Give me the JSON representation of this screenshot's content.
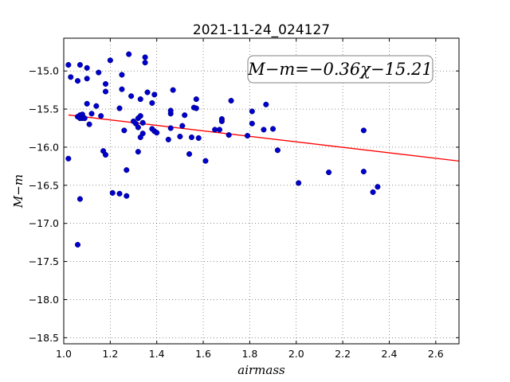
{
  "chart_data": {
    "type": "scatter",
    "title": "2021-11-24_024127",
    "xlabel": "airmass",
    "ylabel": "M−m",
    "xlim": [
      1.0,
      2.7
    ],
    "ylim": [
      -18.58,
      -14.57
    ],
    "x_ticks": [
      1.0,
      1.2,
      1.4,
      1.6,
      1.8,
      2.0,
      2.2,
      2.4,
      2.6
    ],
    "x_tick_labels": [
      "1.0",
      "1.2",
      "1.4",
      "1.6",
      "1.8",
      "2.0",
      "2.2",
      "2.4",
      "2.6"
    ],
    "y_ticks": [
      -15.0,
      -15.5,
      -16.0,
      -16.5,
      -17.0,
      -17.5,
      -18.0,
      -18.5
    ],
    "y_tick_labels": [
      "−15.0",
      "−15.5",
      "−16.0",
      "−16.5",
      "−17.0",
      "−17.5",
      "−18.0",
      "−18.5"
    ],
    "grid": true,
    "annotation": "M−m=−0.36χ−15.21",
    "fit": {
      "slope": -0.36,
      "intercept": -15.21,
      "color": "#ff0000"
    },
    "point_color": "#0000cc",
    "points": [
      [
        1.02,
        -16.15
      ],
      [
        1.02,
        -14.92
      ],
      [
        1.03,
        -15.08
      ],
      [
        1.06,
        -15.13
      ],
      [
        1.06,
        -15.6
      ],
      [
        1.06,
        -17.28
      ],
      [
        1.07,
        -15.58
      ],
      [
        1.07,
        -15.62
      ],
      [
        1.07,
        -16.68
      ],
      [
        1.07,
        -14.92
      ],
      [
        1.08,
        -15.57
      ],
      [
        1.08,
        -15.62
      ],
      [
        1.09,
        -15.62
      ],
      [
        1.1,
        -15.43
      ],
      [
        1.1,
        -14.96
      ],
      [
        1.1,
        -15.1
      ],
      [
        1.11,
        -15.7
      ],
      [
        1.12,
        -15.56
      ],
      [
        1.14,
        -15.46
      ],
      [
        1.15,
        -15.02
      ],
      [
        1.16,
        -15.59
      ],
      [
        1.17,
        -16.05
      ],
      [
        1.18,
        -16.1
      ],
      [
        1.18,
        -15.17
      ],
      [
        1.18,
        -15.27
      ],
      [
        1.2,
        -14.86
      ],
      [
        1.21,
        -16.6
      ],
      [
        1.24,
        -15.49
      ],
      [
        1.24,
        -16.61
      ],
      [
        1.25,
        -15.05
      ],
      [
        1.25,
        -15.24
      ],
      [
        1.26,
        -15.78
      ],
      [
        1.27,
        -16.64
      ],
      [
        1.27,
        -16.3
      ],
      [
        1.28,
        -14.78
      ],
      [
        1.29,
        -15.33
      ],
      [
        1.3,
        -15.66
      ],
      [
        1.31,
        -15.69
      ],
      [
        1.32,
        -15.62
      ],
      [
        1.32,
        -15.74
      ],
      [
        1.32,
        -16.06
      ],
      [
        1.33,
        -15.37
      ],
      [
        1.33,
        -15.87
      ],
      [
        1.33,
        -15.59
      ],
      [
        1.34,
        -15.82
      ],
      [
        1.34,
        -15.68
      ],
      [
        1.35,
        -14.82
      ],
      [
        1.35,
        -14.89
      ],
      [
        1.36,
        -15.28
      ],
      [
        1.38,
        -15.42
      ],
      [
        1.38,
        -15.76
      ],
      [
        1.39,
        -15.31
      ],
      [
        1.39,
        -15.79
      ],
      [
        1.4,
        -15.81
      ],
      [
        1.45,
        -15.9
      ],
      [
        1.46,
        -15.56
      ],
      [
        1.46,
        -15.75
      ],
      [
        1.46,
        -15.52
      ],
      [
        1.47,
        -15.25
      ],
      [
        1.5,
        -15.86
      ],
      [
        1.51,
        -15.72
      ],
      [
        1.52,
        -15.58
      ],
      [
        1.54,
        -16.09
      ],
      [
        1.55,
        -15.87
      ],
      [
        1.56,
        -15.48
      ],
      [
        1.57,
        -15.49
      ],
      [
        1.57,
        -15.37
      ],
      [
        1.58,
        -15.88
      ],
      [
        1.61,
        -16.18
      ],
      [
        1.65,
        -15.77
      ],
      [
        1.67,
        -15.77
      ],
      [
        1.68,
        -15.63
      ],
      [
        1.68,
        -15.66
      ],
      [
        1.71,
        -15.84
      ],
      [
        1.72,
        -15.39
      ],
      [
        1.79,
        -15.85
      ],
      [
        1.81,
        -15.69
      ],
      [
        1.81,
        -15.53
      ],
      [
        1.86,
        -15.77
      ],
      [
        1.87,
        -15.44
      ],
      [
        1.9,
        -15.76
      ],
      [
        1.92,
        -16.04
      ],
      [
        2.01,
        -16.47
      ],
      [
        2.14,
        -16.33
      ],
      [
        2.29,
        -15.78
      ],
      [
        2.29,
        -16.32
      ],
      [
        2.33,
        -16.59
      ],
      [
        2.35,
        -16.52
      ]
    ]
  }
}
